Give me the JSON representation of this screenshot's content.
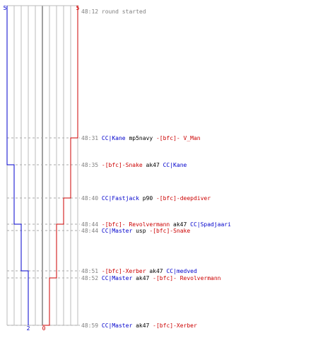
{
  "scores": {
    "blue_start": "5",
    "red_start": "5",
    "blue_end": "2",
    "red_end": "0"
  },
  "colors": {
    "blue": "#0000cc",
    "red": "#cc0000",
    "grid": "#bbbbbb",
    "center": "#808080",
    "dash": "#aaaaaa",
    "time": "#808080",
    "text": "#000000"
  },
  "events": [
    {
      "time": "48:12",
      "parts": [
        {
          "t": "round started",
          "c": "gray"
        }
      ]
    },
    {
      "time": "48:31",
      "parts": [
        {
          "t": "CC|Kane",
          "c": "blue"
        },
        {
          "t": " mp5navy ",
          "c": "black"
        },
        {
          "t": "-[bfc]- V_Man",
          "c": "red"
        }
      ]
    },
    {
      "time": "48:35",
      "parts": [
        {
          "t": "-[bfc]-Snake",
          "c": "red"
        },
        {
          "t": " ak47 ",
          "c": "black"
        },
        {
          "t": "CC|Kane",
          "c": "blue"
        }
      ]
    },
    {
      "time": "48:40",
      "parts": [
        {
          "t": "CC|Fastjack",
          "c": "blue"
        },
        {
          "t": " p90 ",
          "c": "black"
        },
        {
          "t": "-[bfc]-deepdiver",
          "c": "red"
        }
      ]
    },
    {
      "time": "48:44",
      "parts": [
        {
          "t": "-[bfc]- Revolvermann",
          "c": "red"
        },
        {
          "t": " ak47 ",
          "c": "black"
        },
        {
          "t": "CC|Spadjaari",
          "c": "blue"
        }
      ]
    },
    {
      "time": "48:44",
      "parts": [
        {
          "t": "CC|Master",
          "c": "blue"
        },
        {
          "t": " usp ",
          "c": "black"
        },
        {
          "t": "-[bfc]-Snake",
          "c": "red"
        }
      ]
    },
    {
      "time": "48:51",
      "parts": [
        {
          "t": "-[bfc]-Xerber",
          "c": "red"
        },
        {
          "t": " ak47 ",
          "c": "black"
        },
        {
          "t": "CC|medved",
          "c": "blue"
        }
      ]
    },
    {
      "time": "48:52",
      "parts": [
        {
          "t": "CC|Master",
          "c": "blue"
        },
        {
          "t": " ak47 ",
          "c": "black"
        },
        {
          "t": "-[bfc]- Revolvermann",
          "c": "red"
        }
      ]
    },
    {
      "time": "48:59",
      "parts": [
        {
          "t": "CC|Master",
          "c": "blue"
        },
        {
          "t": " ak47 ",
          "c": "black"
        },
        {
          "t": "-[bfc]-Xerber",
          "c": "red"
        }
      ]
    }
  ],
  "chart_data": {
    "type": "line",
    "title": "",
    "xlabel": "",
    "ylabel": "",
    "series": [
      {
        "steps": [
          {
            "time": "48:12",
            "value": 5
          },
          {
            "time": "48:35",
            "value": 4
          },
          {
            "time": "48:44",
            "value": 3
          },
          {
            "time": "48:51",
            "value": 2
          }
        ]
      },
      {
        "steps": [
          {
            "time": "48:12",
            "value": 5
          },
          {
            "time": "48:31",
            "value": 4
          },
          {
            "time": "48:40",
            "value": 3
          },
          {
            "time": "48:44",
            "value": 2
          },
          {
            "time": "48:52",
            "value": 1
          },
          {
            "time": "48:59",
            "value": 0
          }
        ]
      }
    ],
    "grid": true
  }
}
